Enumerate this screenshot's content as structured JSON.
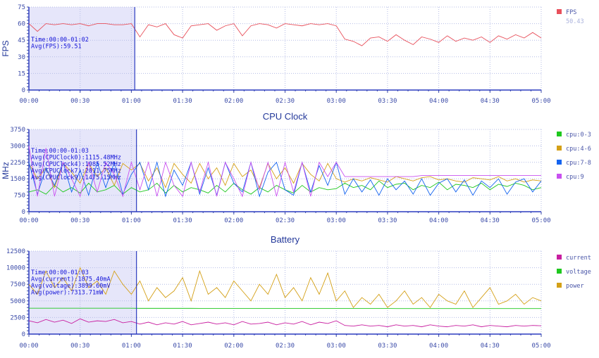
{
  "chart_data": [
    {
      "type": "line",
      "title": "",
      "ylabel": "FPS",
      "ylim": [
        0,
        75
      ],
      "yticks": [
        0,
        15,
        30,
        45,
        60,
        75
      ],
      "xlim_seconds": [
        0,
        300
      ],
      "xticks": [
        "00:00",
        "00:30",
        "01:00",
        "01:30",
        "02:00",
        "02:30",
        "03:00",
        "03:30",
        "04:00",
        "04:30",
        "05:00"
      ],
      "x_step_seconds": 5,
      "selection": {
        "end_seconds": 62,
        "lines": [
          "Time:00:00-01:02",
          "Avg(FPS):59.51"
        ]
      },
      "legend": [
        {
          "name": "FPS",
          "color": "#e8505b",
          "value": "50.43"
        }
      ],
      "series": [
        {
          "name": "FPS",
          "color": "#e8505b",
          "values": [
            60,
            53,
            60,
            59,
            60,
            59,
            60,
            58,
            60,
            60,
            59,
            59,
            60,
            48,
            59,
            57,
            60,
            50,
            47,
            58,
            59,
            60,
            54,
            58,
            60,
            49,
            58,
            60,
            59,
            56,
            60,
            59,
            58,
            60,
            59,
            60,
            58,
            46,
            44,
            40,
            47,
            48,
            44,
            50,
            45,
            41,
            48,
            46,
            43,
            49,
            44,
            47,
            45,
            48,
            43,
            49,
            46,
            50,
            47,
            52,
            47
          ]
        }
      ]
    },
    {
      "type": "line",
      "title": "CPU Clock",
      "ylabel": "MHz",
      "ylim": [
        0,
        3750
      ],
      "yticks": [
        0,
        750,
        1500,
        2250,
        3000,
        3750
      ],
      "xlim_seconds": [
        0,
        300
      ],
      "xticks": [
        "00:00",
        "00:30",
        "01:00",
        "01:30",
        "02:00",
        "02:30",
        "03:00",
        "03:30",
        "04:00",
        "04:30",
        "05:00"
      ],
      "x_step_seconds": 5,
      "selection": {
        "end_seconds": 63,
        "lines": [
          "Time:00:00-01:03",
          "Avg(CPUClock0):1115.48MHz",
          "Avg(CPUClock4):1985.52MHz",
          "Avg(CPUClock7):2011.75MHz",
          "Avg(CPUClock9):1475.15MHz"
        ]
      },
      "legend": [
        {
          "name": "cpu:0-3",
          "color": "#1ec81e"
        },
        {
          "name": "cpu:4-6",
          "color": "#d4a017"
        },
        {
          "name": "cpu:7-8",
          "color": "#1464f0"
        },
        {
          "name": "cpu:9",
          "color": "#c850f0"
        }
      ],
      "series": [
        {
          "name": "cpu:0-3",
          "color": "#1ec81e",
          "values": [
            900,
            1000,
            800,
            1200,
            900,
            1100,
            850,
            1300,
            900,
            1000,
            1200,
            800,
            1100,
            900,
            1000,
            1300,
            850,
            1200,
            900,
            1100,
            1000,
            850,
            1200,
            900,
            1300,
            1000,
            800,
            1100,
            900,
            1200,
            1000,
            850,
            1200,
            900,
            1100,
            1000,
            1050,
            1300,
            1100,
            1200,
            1000,
            1400,
            1100,
            1250,
            1300,
            1000,
            1200,
            1100,
            1350,
            1000,
            1250,
            1200,
            1100,
            1300,
            1000,
            1250,
            1150,
            1300,
            1200,
            1000,
            1100
          ]
        },
        {
          "name": "cpu:4-6",
          "color": "#d4a017",
          "values": [
            2200,
            1500,
            2000,
            1100,
            2200,
            1800,
            1300,
            2200,
            1600,
            2000,
            1200,
            2200,
            1900,
            2200,
            1400,
            2000,
            1100,
            2200,
            1700,
            1300,
            2200,
            1500,
            2000,
            1200,
            2200,
            1600,
            1900,
            1100,
            2200,
            1500,
            2000,
            1300,
            2200,
            1700,
            1400,
            2200,
            1500,
            1350,
            1500,
            1400,
            1550,
            1450,
            1350,
            1600,
            1500,
            1400,
            1550,
            1600,
            1450,
            1500,
            1400,
            1350,
            1550,
            1500,
            1450,
            1600,
            1400,
            1500,
            1350,
            1450,
            1400
          ]
        },
        {
          "name": "cpu:7-8",
          "color": "#1464f0",
          "values": [
            2250,
            800,
            2000,
            1200,
            2250,
            900,
            1900,
            750,
            2250,
            1100,
            2250,
            800,
            1700,
            2250,
            1000,
            2250,
            700,
            1900,
            1200,
            2250,
            800,
            2000,
            750,
            2250,
            1300,
            900,
            2250,
            700,
            1800,
            2250,
            1000,
            750,
            2250,
            900,
            2100,
            1200,
            2250,
            800,
            1500,
            900,
            1450,
            750,
            1500,
            1000,
            1400,
            800,
            1500,
            750,
            1300,
            1500,
            900,
            1450,
            750,
            1400,
            1100,
            1500,
            800,
            1350,
            1500,
            900,
            1400
          ]
        },
        {
          "name": "cpu:9",
          "color": "#c850f0",
          "values": [
            3000,
            700,
            2900,
            700,
            2250,
            1500,
            700,
            2250,
            900,
            2250,
            1700,
            700,
            2250,
            1000,
            2250,
            700,
            2250,
            1200,
            700,
            2250,
            900,
            2250,
            700,
            2250,
            1500,
            700,
            2250,
            1000,
            2250,
            700,
            2250,
            900,
            2250,
            700,
            2250,
            1600,
            2250,
            1600,
            1600,
            1600,
            1600,
            1600,
            1600,
            1600,
            1600,
            1600,
            1650,
            1650,
            1650,
            1650,
            1650,
            1650,
            1650,
            1650,
            1650,
            1650,
            1650,
            1650,
            1650,
            1650,
            1650
          ]
        }
      ]
    },
    {
      "type": "line",
      "title": "Battery",
      "ylabel": "",
      "ylim": [
        0,
        12500
      ],
      "yticks": [
        0,
        2500,
        5000,
        7500,
        10000,
        12500
      ],
      "xlim_seconds": [
        0,
        300
      ],
      "xticks": [
        "00:00",
        "00:30",
        "01:00",
        "01:30",
        "02:00",
        "02:30",
        "03:00",
        "03:30",
        "04:00",
        "04:30",
        "05:00"
      ],
      "x_step_seconds": 5,
      "selection": {
        "end_seconds": 63,
        "lines": [
          "Time:00:00-01:03",
          "Avg(current):1875.40mA",
          "Avg(voltage):3899.60mV",
          "Avg(power):7313.71mW"
        ]
      },
      "legend": [
        {
          "name": "current",
          "color": "#c81ea0"
        },
        {
          "name": "voltage",
          "color": "#1ec81e"
        },
        {
          "name": "power",
          "color": "#d4a017"
        }
      ],
      "series": [
        {
          "name": "current",
          "color": "#c81ea0",
          "values": [
            2000,
            1700,
            2200,
            1800,
            2100,
            1600,
            2300,
            1800,
            2000,
            1900,
            2200,
            1700,
            1900,
            1500,
            1800,
            1400,
            1700,
            1500,
            1900,
            1400,
            1600,
            1800,
            1500,
            1700,
            1400,
            1900,
            1500,
            1600,
            1800,
            1400,
            1700,
            1500,
            1900,
            1400,
            1800,
            1600,
            2000,
            1300,
            1200,
            1400,
            1200,
            1300,
            1100,
            1400,
            1200,
            1300,
            1100,
            1400,
            1200,
            1100,
            1300,
            1200,
            1400,
            1100,
            1300,
            1200,
            1100,
            1300,
            1200,
            1300,
            1250
          ]
        },
        {
          "name": "voltage",
          "color": "#1ec81e",
          "values": [
            3900,
            3900,
            3900,
            3900,
            3900,
            3900,
            3900,
            3900,
            3900,
            3900,
            3900,
            3900,
            3900,
            3880,
            3880,
            3880,
            3880,
            3880,
            3880,
            3880,
            3870,
            3870,
            3870,
            3870,
            3870,
            3870,
            3870,
            3870,
            3870,
            3870,
            3860,
            3860,
            3860,
            3860,
            3860,
            3860,
            3860,
            3860,
            3860,
            3860,
            3860,
            3860,
            3860,
            3850,
            3850,
            3850,
            3850,
            3850,
            3850,
            3850,
            3850,
            3850,
            3850,
            3850,
            3850,
            3850,
            3850,
            3850,
            3850,
            3850,
            3850
          ]
        },
        {
          "name": "power",
          "color": "#d4a017",
          "values": [
            7500,
            6000,
            9500,
            7000,
            8500,
            6500,
            10000,
            7000,
            8000,
            6000,
            9500,
            7500,
            6000,
            8000,
            5000,
            7000,
            5500,
            6500,
            8500,
            5000,
            9500,
            6000,
            7000,
            5500,
            8000,
            6500,
            5000,
            7500,
            6000,
            9000,
            5500,
            7000,
            5000,
            8500,
            6000,
            9200,
            5000,
            6500,
            4000,
            5500,
            4500,
            6000,
            4000,
            5000,
            6500,
            4500,
            5500,
            4000,
            6000,
            5000,
            4500,
            6500,
            4000,
            5500,
            7000,
            4500,
            5000,
            6000,
            4500,
            5500,
            5000
          ]
        }
      ]
    }
  ]
}
